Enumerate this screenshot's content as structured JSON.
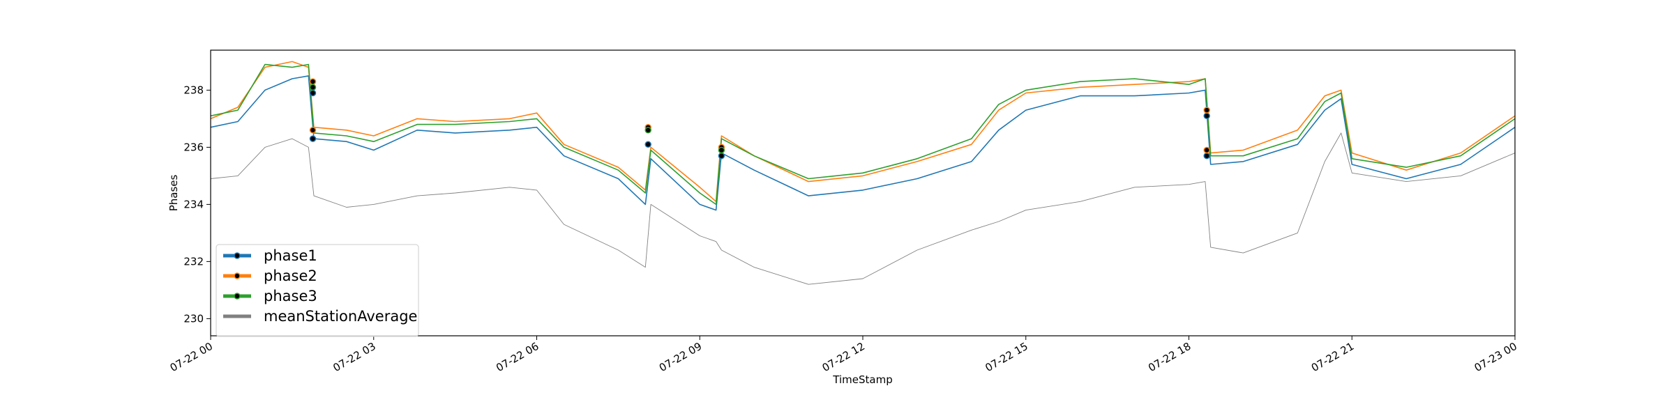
{
  "chart_data": {
    "type": "line",
    "title": "",
    "xlabel": "TimeStamp",
    "ylabel": "Phases",
    "x_range_hours": [
      0,
      24
    ],
    "xlim": [
      "07-22 00",
      "07-23 00"
    ],
    "ylim": [
      229.4,
      239.4
    ],
    "x_ticks": [
      {
        "hour": 0,
        "label": "07-22 00"
      },
      {
        "hour": 3,
        "label": "07-22 03"
      },
      {
        "hour": 6,
        "label": "07-22 06"
      },
      {
        "hour": 9,
        "label": "07-22 09"
      },
      {
        "hour": 12,
        "label": "07-22 12"
      },
      {
        "hour": 15,
        "label": "07-22 15"
      },
      {
        "hour": 18,
        "label": "07-22 18"
      },
      {
        "hour": 21,
        "label": "07-22 21"
      },
      {
        "hour": 24,
        "label": "07-23 00"
      }
    ],
    "y_ticks": [
      230,
      232,
      234,
      236,
      238
    ],
    "grid": false,
    "legend_position": "lower-left",
    "x_hours": [
      0,
      0.5,
      1.0,
      1.5,
      1.8,
      1.9,
      2.5,
      3.0,
      3.8,
      4.5,
      5.5,
      6.0,
      6.5,
      7.5,
      8.0,
      8.1,
      9.0,
      9.3,
      9.4,
      10.0,
      11.0,
      12.0,
      13.0,
      14.0,
      14.5,
      15.0,
      16.0,
      17.0,
      18.0,
      18.3,
      18.4,
      19.0,
      20.0,
      20.5,
      20.8,
      21.0,
      22.0,
      23.0,
      24.0
    ],
    "series": [
      {
        "name": "phase1",
        "color": "#1f77b4",
        "marker": true,
        "values": [
          236.7,
          236.9,
          238.0,
          238.4,
          238.5,
          236.3,
          236.2,
          235.9,
          236.6,
          236.5,
          236.6,
          236.7,
          235.7,
          234.9,
          234.0,
          235.6,
          234.0,
          233.8,
          235.8,
          235.2,
          234.3,
          234.5,
          234.9,
          235.5,
          236.6,
          237.3,
          237.8,
          237.8,
          237.9,
          238.0,
          235.4,
          235.5,
          236.1,
          237.3,
          237.7,
          235.4,
          234.9,
          235.4,
          236.7
        ]
      },
      {
        "name": "phase2",
        "color": "#ff7f0e",
        "marker": true,
        "values": [
          237.0,
          237.4,
          238.8,
          239.0,
          238.8,
          236.7,
          236.6,
          236.4,
          237.0,
          236.9,
          237.0,
          237.2,
          236.1,
          235.3,
          234.5,
          236.0,
          234.6,
          234.1,
          236.4,
          235.7,
          234.8,
          235.0,
          235.5,
          236.1,
          237.3,
          237.9,
          238.1,
          238.2,
          238.3,
          238.4,
          235.8,
          235.9,
          236.6,
          237.8,
          238.0,
          235.8,
          235.2,
          235.8,
          237.1
        ]
      },
      {
        "name": "phase3",
        "color": "#2ca02c",
        "marker": true,
        "values": [
          237.1,
          237.3,
          238.9,
          238.8,
          238.9,
          236.5,
          236.4,
          236.2,
          236.8,
          236.8,
          236.9,
          237.0,
          236.0,
          235.2,
          234.4,
          235.9,
          234.4,
          234.0,
          236.3,
          235.7,
          234.9,
          235.1,
          235.6,
          236.3,
          237.5,
          238.0,
          238.3,
          238.4,
          238.2,
          238.4,
          235.7,
          235.7,
          236.3,
          237.6,
          237.9,
          235.6,
          235.3,
          235.7,
          237.0
        ]
      },
      {
        "name": "meanStationAverage",
        "color": "#808080",
        "marker": false,
        "values": [
          234.9,
          235.0,
          236.0,
          236.3,
          236.0,
          234.3,
          233.9,
          234.0,
          234.3,
          234.4,
          234.6,
          234.5,
          233.3,
          232.4,
          231.8,
          234.0,
          232.9,
          232.7,
          232.4,
          231.8,
          231.2,
          231.4,
          232.4,
          233.1,
          233.4,
          233.8,
          234.1,
          234.6,
          234.7,
          234.8,
          232.5,
          232.3,
          233.0,
          235.5,
          236.5,
          235.1,
          234.8,
          235.0,
          235.8
        ]
      }
    ],
    "marker_points": [
      {
        "series": "phase1",
        "x": 1.88,
        "y": 236.3
      },
      {
        "series": "phase1",
        "x": 1.88,
        "y": 237.9
      },
      {
        "series": "phase2",
        "x": 1.88,
        "y": 238.3
      },
      {
        "series": "phase3",
        "x": 1.88,
        "y": 238.1
      },
      {
        "series": "phase2",
        "x": 1.88,
        "y": 236.6
      },
      {
        "series": "phase1",
        "x": 8.05,
        "y": 236.1
      },
      {
        "series": "phase2",
        "x": 8.05,
        "y": 236.7
      },
      {
        "series": "phase3",
        "x": 8.05,
        "y": 236.6
      },
      {
        "series": "phase1",
        "x": 9.4,
        "y": 235.7
      },
      {
        "series": "phase2",
        "x": 9.4,
        "y": 236.0
      },
      {
        "series": "phase3",
        "x": 9.4,
        "y": 235.9
      },
      {
        "series": "phase1",
        "x": 18.33,
        "y": 235.7
      },
      {
        "series": "phase2",
        "x": 18.33,
        "y": 235.9
      },
      {
        "series": "phase1",
        "x": 18.33,
        "y": 237.1
      },
      {
        "series": "phase2",
        "x": 18.33,
        "y": 237.3
      }
    ],
    "legend": [
      {
        "label": "phase1",
        "color": "#1f77b4",
        "marker": true
      },
      {
        "label": "phase2",
        "color": "#ff7f0e",
        "marker": true
      },
      {
        "label": "phase3",
        "color": "#2ca02c",
        "marker": true
      },
      {
        "label": "meanStationAverage",
        "color": "#808080",
        "marker": false
      }
    ]
  }
}
